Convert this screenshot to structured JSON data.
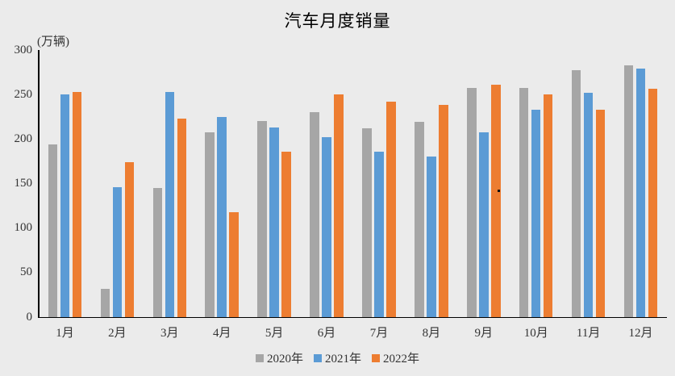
{
  "chart": {
    "background_color": "#ebebeb",
    "axis_color": "#000000",
    "text_color": "#333333"
  },
  "chart_data": {
    "type": "bar",
    "title": "汽车月度销量",
    "ylabel": "(万辆)",
    "xlabel": "",
    "categories": [
      "1月",
      "2月",
      "3月",
      "4月",
      "5月",
      "6月",
      "7月",
      "8月",
      "9月",
      "10月",
      "11月",
      "12月"
    ],
    "series": [
      {
        "name": "2020年",
        "color": "#A6A6A6",
        "values": [
          194,
          31,
          145,
          207,
          220,
          230,
          212,
          219,
          257,
          257,
          277,
          283
        ]
      },
      {
        "name": "2021年",
        "color": "#5B9BD5",
        "values": [
          250,
          146,
          253,
          225,
          213,
          202,
          186,
          180,
          207,
          233,
          252,
          279
        ]
      },
      {
        "name": "2022年",
        "color": "#ED7D31",
        "values": [
          253,
          174,
          223,
          118,
          186,
          250,
          242,
          238,
          261,
          250,
          233,
          256
        ]
      }
    ],
    "ylim": [
      0,
      300
    ],
    "yticks": [
      300,
      250,
      200,
      150,
      100,
      50,
      0
    ],
    "grid": false,
    "legend_position": "bottom"
  }
}
